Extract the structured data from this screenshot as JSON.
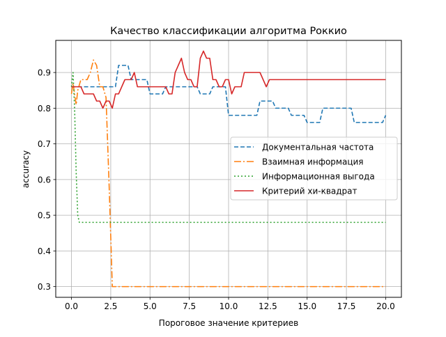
{
  "chart_data": {
    "type": "line",
    "title": "Качество классификации алгоритма Роккио",
    "xlabel": "Пороговое значение критериев",
    "ylabel": "accuracy",
    "xlim": [
      -1.0,
      21.0
    ],
    "ylim": [
      0.27,
      0.99
    ],
    "xticks": [
      0.0,
      2.5,
      5.0,
      7.5,
      10.0,
      12.5,
      15.0,
      17.5,
      20.0
    ],
    "xtick_labels": [
      "0.0",
      "2.5",
      "5.0",
      "7.5",
      "10.0",
      "12.5",
      "15.0",
      "17.5",
      "20.0"
    ],
    "yticks": [
      0.3,
      0.4,
      0.5,
      0.6,
      0.7,
      0.8,
      0.9
    ],
    "ytick_labels": [
      "0.3",
      "0.4",
      "0.5",
      "0.6",
      "0.7",
      "0.8",
      "0.9"
    ],
    "grid": true,
    "legend_position": "center-right",
    "series": [
      {
        "name": "Документальная частота",
        "color": "#1f77b4",
        "dash": "6,3",
        "x": [
          0,
          0.2,
          0.4,
          0.6,
          0.8,
          1.0,
          1.2,
          1.4,
          1.6,
          1.8,
          2.0,
          2.2,
          2.4,
          2.6,
          2.8,
          3.0,
          3.2,
          3.4,
          3.6,
          3.8,
          4.0,
          4.2,
          4.4,
          4.6,
          4.8,
          5.0,
          5.2,
          5.4,
          5.6,
          5.8,
          6.0,
          6.2,
          6.4,
          6.6,
          6.8,
          7.0,
          7.2,
          7.4,
          7.6,
          7.8,
          8.0,
          8.2,
          8.4,
          8.6,
          8.8,
          9.0,
          9.2,
          9.4,
          9.6,
          9.8,
          10.0,
          10.2,
          10.4,
          10.6,
          10.8,
          11.0,
          11.2,
          11.4,
          11.6,
          11.8,
          12.0,
          12.2,
          12.4,
          12.6,
          12.8,
          13.0,
          13.2,
          13.4,
          13.6,
          13.8,
          14.0,
          14.2,
          14.4,
          14.6,
          14.8,
          15.0,
          15.2,
          15.4,
          15.6,
          15.8,
          16.0,
          16.2,
          16.4,
          16.6,
          16.8,
          17.0,
          17.2,
          17.4,
          17.6,
          17.8,
          18.0,
          18.2,
          18.4,
          18.6,
          18.8,
          19.0,
          19.2,
          19.4,
          19.6,
          19.8,
          20.0
        ],
        "y": [
          0.86,
          0.86,
          0.86,
          0.86,
          0.86,
          0.86,
          0.86,
          0.86,
          0.86,
          0.86,
          0.86,
          0.86,
          0.86,
          0.86,
          0.86,
          0.92,
          0.92,
          0.92,
          0.92,
          0.88,
          0.88,
          0.88,
          0.88,
          0.88,
          0.88,
          0.84,
          0.84,
          0.84,
          0.84,
          0.84,
          0.86,
          0.86,
          0.86,
          0.86,
          0.86,
          0.86,
          0.86,
          0.86,
          0.86,
          0.86,
          0.86,
          0.84,
          0.84,
          0.84,
          0.84,
          0.86,
          0.86,
          0.86,
          0.86,
          0.86,
          0.78,
          0.78,
          0.78,
          0.78,
          0.78,
          0.78,
          0.78,
          0.78,
          0.78,
          0.78,
          0.82,
          0.82,
          0.82,
          0.82,
          0.82,
          0.8,
          0.8,
          0.8,
          0.8,
          0.8,
          0.78,
          0.78,
          0.78,
          0.78,
          0.78,
          0.76,
          0.76,
          0.76,
          0.76,
          0.76,
          0.8,
          0.8,
          0.8,
          0.8,
          0.8,
          0.8,
          0.8,
          0.8,
          0.8,
          0.8,
          0.76,
          0.76,
          0.76,
          0.76,
          0.76,
          0.76,
          0.76,
          0.76,
          0.76,
          0.76,
          0.78
        ]
      },
      {
        "name": "Взаимная информация",
        "color": "#ff7f0e",
        "dash": "10,3,2,3",
        "x": [
          0,
          0.1,
          0.2,
          0.3,
          0.4,
          0.6,
          0.8,
          1.0,
          1.2,
          1.4,
          1.6,
          1.8,
          2.0,
          2.2,
          2.4,
          2.6,
          2.8,
          3.0,
          4.0,
          6.0,
          8.0,
          10.0,
          12.0,
          14.0,
          16.0,
          18.0,
          20.0
        ],
        "y": [
          0.84,
          0.87,
          0.84,
          0.81,
          0.85,
          0.88,
          0.88,
          0.88,
          0.9,
          0.935,
          0.92,
          0.86,
          0.86,
          0.83,
          0.58,
          0.3,
          0.3,
          0.3,
          0.3,
          0.3,
          0.3,
          0.3,
          0.3,
          0.3,
          0.3,
          0.3,
          0.3
        ]
      },
      {
        "name": "Информационная выгода",
        "color": "#2ca02c",
        "dash": "2,3",
        "x": [
          0,
          0.1,
          0.2,
          0.3,
          0.4,
          0.5,
          1.0,
          2.0,
          4.0,
          6.0,
          8.0,
          10.0,
          12.0,
          14.0,
          16.0,
          18.0,
          20.0
        ],
        "y": [
          0.86,
          0.9,
          0.8,
          0.62,
          0.5,
          0.48,
          0.48,
          0.48,
          0.48,
          0.48,
          0.48,
          0.48,
          0.48,
          0.48,
          0.48,
          0.48,
          0.48
        ]
      },
      {
        "name": "Критерий хи-квадрат",
        "color": "#d62728",
        "dash": "",
        "x": [
          0,
          0.2,
          0.4,
          0.6,
          0.8,
          1.0,
          1.2,
          1.4,
          1.6,
          1.8,
          2.0,
          2.2,
          2.4,
          2.6,
          2.8,
          3.0,
          3.2,
          3.4,
          3.6,
          3.8,
          4.0,
          4.2,
          4.4,
          4.6,
          4.8,
          5.0,
          5.2,
          5.4,
          5.6,
          5.8,
          6.0,
          6.2,
          6.4,
          6.6,
          6.8,
          7.0,
          7.2,
          7.4,
          7.6,
          7.8,
          8.0,
          8.2,
          8.4,
          8.6,
          8.8,
          9.0,
          9.2,
          9.4,
          9.6,
          9.8,
          10.0,
          10.2,
          10.4,
          10.6,
          10.8,
          11.0,
          11.2,
          11.4,
          11.6,
          11.8,
          12.0,
          12.2,
          12.4,
          12.6,
          12.8,
          13.0,
          13.2,
          13.4,
          13.6,
          13.8,
          14.0,
          14.2,
          14.4,
          14.6,
          14.8,
          15.0,
          16.0,
          17.0,
          18.0,
          19.0,
          20.0
        ],
        "y": [
          0.86,
          0.86,
          0.86,
          0.86,
          0.84,
          0.84,
          0.84,
          0.84,
          0.82,
          0.82,
          0.8,
          0.82,
          0.82,
          0.8,
          0.84,
          0.84,
          0.86,
          0.88,
          0.88,
          0.88,
          0.9,
          0.86,
          0.86,
          0.86,
          0.86,
          0.86,
          0.86,
          0.86,
          0.86,
          0.86,
          0.86,
          0.84,
          0.84,
          0.9,
          0.92,
          0.94,
          0.9,
          0.88,
          0.88,
          0.86,
          0.86,
          0.94,
          0.96,
          0.94,
          0.94,
          0.88,
          0.88,
          0.86,
          0.86,
          0.88,
          0.88,
          0.84,
          0.86,
          0.86,
          0.86,
          0.9,
          0.9,
          0.9,
          0.9,
          0.9,
          0.9,
          0.88,
          0.86,
          0.88,
          0.88,
          0.88,
          0.88,
          0.88,
          0.88,
          0.88,
          0.88,
          0.88,
          0.88,
          0.88,
          0.88,
          0.88,
          0.88,
          0.88,
          0.88,
          0.88,
          0.88
        ]
      }
    ]
  }
}
